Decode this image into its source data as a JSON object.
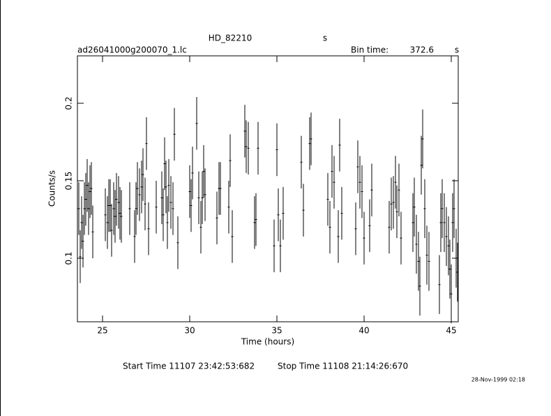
{
  "chart_data": {
    "type": "errorbar",
    "title": "HD_82210",
    "subtitle": "s",
    "file": "ad26041000g200070_1.lc",
    "bin_time_label": "Bin time:",
    "bin_time": 372.6,
    "bin_time_unit": "s",
    "xlabel": "Time (hours)",
    "ylabel": "Counts/s",
    "start_time": "Start Time 11107 23:42:53:682",
    "stop_time": "Stop Time 11108 21:14:26:670",
    "timestamp": "28-Nov-1999 02:18",
    "xlim": [
      23.56,
      45.4
    ],
    "xticks": [
      25,
      30,
      35,
      40,
      45
    ],
    "ylim": [
      0.059,
      0.2306
    ],
    "yticks": [
      0.1,
      0.15,
      0.2
    ],
    "color": "#000000",
    "series": [
      {
        "x": [
          23.64,
          23.72,
          23.8,
          23.88,
          23.96,
          24.04,
          24.12,
          24.2,
          24.28,
          24.36,
          24.44,
          25.16,
          25.28,
          25.36,
          25.44,
          25.52,
          25.64,
          25.72,
          25.8,
          25.92,
          26.0,
          26.08,
          26.56,
          26.84,
          26.92,
          27.0,
          27.12,
          27.24,
          27.32,
          27.44,
          27.52,
          27.64,
          28.08,
          28.4,
          28.48,
          28.56,
          28.64,
          28.72,
          28.8,
          28.92,
          29.04,
          29.12,
          29.32,
          30.0,
          30.08,
          30.16,
          30.4,
          30.52,
          30.64,
          30.72,
          30.8,
          30.88,
          31.56,
          31.68,
          31.76,
          32.24,
          32.32,
          32.44,
          33.16,
          33.24,
          33.36,
          33.72,
          33.8,
          33.92,
          34.84,
          35.0,
          35.08,
          35.2,
          35.36,
          36.4,
          36.52,
          36.88,
          36.96,
          37.92,
          38.04,
          38.16,
          38.28,
          38.52,
          38.6,
          38.72,
          39.52,
          39.64,
          39.76,
          39.88,
          40.0,
          40.32,
          40.44,
          41.44,
          41.56,
          41.68,
          41.8,
          41.88,
          42.0,
          42.12,
          42.8,
          42.88,
          43.0,
          43.12,
          43.2,
          43.28,
          43.36,
          43.48,
          43.6,
          43.72,
          44.32,
          44.4,
          44.48,
          44.6,
          44.72,
          44.84,
          44.92,
          45.0,
          45.08,
          45.16,
          45.28,
          45.36
        ],
        "values": [
          0.132,
          0.101,
          0.123,
          0.111,
          0.132,
          0.138,
          0.147,
          0.132,
          0.143,
          0.145,
          0.117,
          0.128,
          0.123,
          0.134,
          0.134,
          0.118,
          0.132,
          0.127,
          0.138,
          0.136,
          0.129,
          0.127,
          0.132,
          0.114,
          0.132,
          0.145,
          0.141,
          0.146,
          0.154,
          0.135,
          0.174,
          0.119,
          0.133,
          0.139,
          0.128,
          0.161,
          0.146,
          0.123,
          0.147,
          0.136,
          0.132,
          0.18,
          0.11,
          0.143,
          0.134,
          0.155,
          0.187,
          0.139,
          0.12,
          0.139,
          0.156,
          0.141,
          0.126,
          0.145,
          0.145,
          0.133,
          0.163,
          0.114,
          0.182,
          0.172,
          0.171,
          0.123,
          0.125,
          0.171,
          0.108,
          0.17,
          0.128,
          0.108,
          0.129,
          0.162,
          0.131,
          0.174,
          0.177,
          0.138,
          0.12,
          0.156,
          0.149,
          0.114,
          0.173,
          0.129,
          0.119,
          0.159,
          0.149,
          0.143,
          0.113,
          0.121,
          0.144,
          0.12,
          0.135,
          0.136,
          0.149,
          0.13,
          0.144,
          0.113,
          0.123,
          0.133,
          0.109,
          0.098,
          0.082,
          0.16,
          0.177,
          0.132,
          0.102,
          0.098,
          0.083,
          0.123,
          0.132,
          0.123,
          0.114,
          0.108,
          0.093,
          0.077,
          0.123,
          0.132,
          0.1,
          0.091
        ],
        "errors": [
          0.017,
          0.017,
          0.017,
          0.017,
          0.017,
          0.017,
          0.017,
          0.017,
          0.017,
          0.017,
          0.017,
          0.017,
          0.017,
          0.017,
          0.017,
          0.017,
          0.017,
          0.017,
          0.017,
          0.017,
          0.017,
          0.017,
          0.017,
          0.017,
          0.017,
          0.017,
          0.017,
          0.017,
          0.017,
          0.017,
          0.017,
          0.017,
          0.017,
          0.017,
          0.017,
          0.017,
          0.017,
          0.017,
          0.017,
          0.017,
          0.017,
          0.017,
          0.017,
          0.017,
          0.017,
          0.017,
          0.017,
          0.017,
          0.017,
          0.017,
          0.017,
          0.017,
          0.017,
          0.017,
          0.017,
          0.017,
          0.017,
          0.017,
          0.017,
          0.017,
          0.017,
          0.017,
          0.017,
          0.017,
          0.017,
          0.017,
          0.017,
          0.017,
          0.017,
          0.017,
          0.017,
          0.017,
          0.017,
          0.017,
          0.017,
          0.017,
          0.017,
          0.017,
          0.017,
          0.017,
          0.017,
          0.017,
          0.017,
          0.017,
          0.017,
          0.017,
          0.017,
          0.017,
          0.017,
          0.017,
          0.017,
          0.017,
          0.017,
          0.017,
          0.019,
          0.019,
          0.019,
          0.019,
          0.019,
          0.019,
          0.019,
          0.019,
          0.019,
          0.019,
          0.019,
          0.019,
          0.019,
          0.019,
          0.019,
          0.019,
          0.019,
          0.019,
          0.019,
          0.019,
          0.019,
          0.019
        ]
      }
    ]
  }
}
